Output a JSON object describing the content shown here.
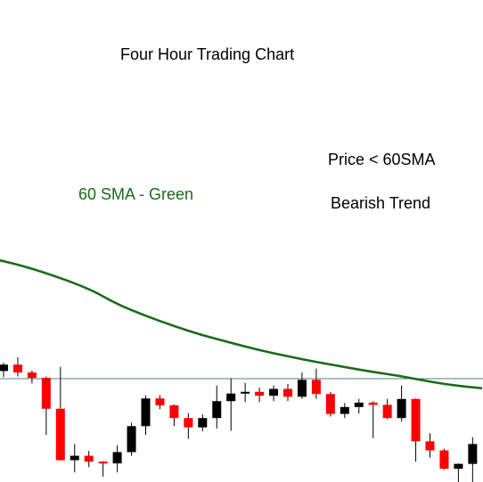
{
  "chart_data": {
    "type": "candlestick",
    "title": "Four Hour Trading Chart",
    "xlabel": "",
    "ylabel": "",
    "grid": false,
    "colors": {
      "bullish": "#000000",
      "bearish": "#ff0000",
      "sma": "#1a6b1a",
      "hline": "#5a7d8c",
      "wick": "#000000"
    },
    "annotations": {
      "sma_label": "60 SMA - Green",
      "price_relation": "Price < 60SMA",
      "trend": "Bearish Trend"
    },
    "y_range": [
      0,
      100
    ],
    "horizontal_line": 42.2,
    "candles": [
      {
        "o": 45.3,
        "h": 48.7,
        "l": 42.8,
        "c": 47.9
      },
      {
        "o": 47.9,
        "h": 50.9,
        "l": 43.1,
        "c": 44.7
      },
      {
        "o": 44.7,
        "h": 45.5,
        "l": 40.2,
        "c": 42.5
      },
      {
        "o": 42.5,
        "h": 43.1,
        "l": 19.2,
        "c": 29.9
      },
      {
        "o": 29.9,
        "h": 47.0,
        "l": 8.7,
        "c": 8.9
      },
      {
        "o": 8.9,
        "h": 15.5,
        "l": 3.9,
        "c": 10.7
      },
      {
        "o": 10.7,
        "h": 12.7,
        "l": 6.1,
        "c": 8.3
      },
      {
        "o": 8.3,
        "h": 8.5,
        "l": 2.2,
        "c": 7.6
      },
      {
        "o": 7.6,
        "h": 15.0,
        "l": 3.9,
        "c": 12.2
      },
      {
        "o": 12.2,
        "h": 24.2,
        "l": 10.7,
        "c": 22.8
      },
      {
        "o": 22.8,
        "h": 35.4,
        "l": 19.2,
        "c": 34.1
      },
      {
        "o": 34.1,
        "h": 35.4,
        "l": 29.7,
        "c": 31.3
      },
      {
        "o": 31.3,
        "h": 31.7,
        "l": 22.8,
        "c": 26.1
      },
      {
        "o": 26.1,
        "h": 28.1,
        "l": 17.6,
        "c": 22.3
      },
      {
        "o": 22.3,
        "h": 27.6,
        "l": 20.7,
        "c": 26.1
      },
      {
        "o": 26.1,
        "h": 39.4,
        "l": 21.8,
        "c": 33.0
      },
      {
        "o": 33.0,
        "h": 42.3,
        "l": 20.9,
        "c": 36.1
      },
      {
        "o": 36.1,
        "h": 40.4,
        "l": 32.6,
        "c": 36.8
      },
      {
        "o": 36.8,
        "h": 38.5,
        "l": 32.6,
        "c": 35.2
      },
      {
        "o": 35.2,
        "h": 39.4,
        "l": 33.0,
        "c": 38.0
      },
      {
        "o": 38.0,
        "h": 40.0,
        "l": 33.0,
        "c": 34.8
      },
      {
        "o": 34.8,
        "h": 44.7,
        "l": 33.9,
        "c": 41.7
      },
      {
        "o": 41.7,
        "h": 46.3,
        "l": 33.9,
        "c": 35.9
      },
      {
        "o": 35.9,
        "h": 36.8,
        "l": 26.7,
        "c": 27.8
      },
      {
        "o": 27.8,
        "h": 32.2,
        "l": 26.1,
        "c": 30.6
      },
      {
        "o": 30.6,
        "h": 33.9,
        "l": 28.0,
        "c": 32.4
      },
      {
        "o": 32.4,
        "h": 33.0,
        "l": 17.9,
        "c": 31.5
      },
      {
        "o": 31.5,
        "h": 33.9,
        "l": 25.6,
        "c": 26.1
      },
      {
        "o": 26.1,
        "h": 39.4,
        "l": 24.7,
        "c": 33.9
      },
      {
        "o": 33.9,
        "h": 34.1,
        "l": 8.3,
        "c": 16.6
      },
      {
        "o": 16.6,
        "h": 19.9,
        "l": 10.0,
        "c": 12.9
      },
      {
        "o": 12.9,
        "h": 13.6,
        "l": 5.0,
        "c": 5.4
      },
      {
        "o": 5.4,
        "h": 7.6,
        "l": 0.0,
        "c": 7.4
      },
      {
        "o": 7.4,
        "h": 18.3,
        "l": 0.0,
        "c": 15.5
      }
    ],
    "sma": [
      {
        "x": -1.0,
        "y": 91.5
      },
      {
        "x": 2.0,
        "y": 87.3
      },
      {
        "x": 6.0,
        "y": 79.1
      },
      {
        "x": 8.0,
        "y": 72.5
      },
      {
        "x": 10.0,
        "y": 67.8
      },
      {
        "x": 12.0,
        "y": 63.6
      },
      {
        "x": 14.0,
        "y": 59.9
      },
      {
        "x": 16.0,
        "y": 56.8
      },
      {
        "x": 18.0,
        "y": 53.8
      },
      {
        "x": 20.0,
        "y": 51.3
      },
      {
        "x": 22.0,
        "y": 49.0
      },
      {
        "x": 24.0,
        "y": 46.9
      },
      {
        "x": 26.0,
        "y": 44.9
      },
      {
        "x": 28.0,
        "y": 43.2
      },
      {
        "x": 30.0,
        "y": 40.9
      },
      {
        "x": 32.0,
        "y": 39.2
      },
      {
        "x": 33.6,
        "y": 38.3
      }
    ]
  }
}
